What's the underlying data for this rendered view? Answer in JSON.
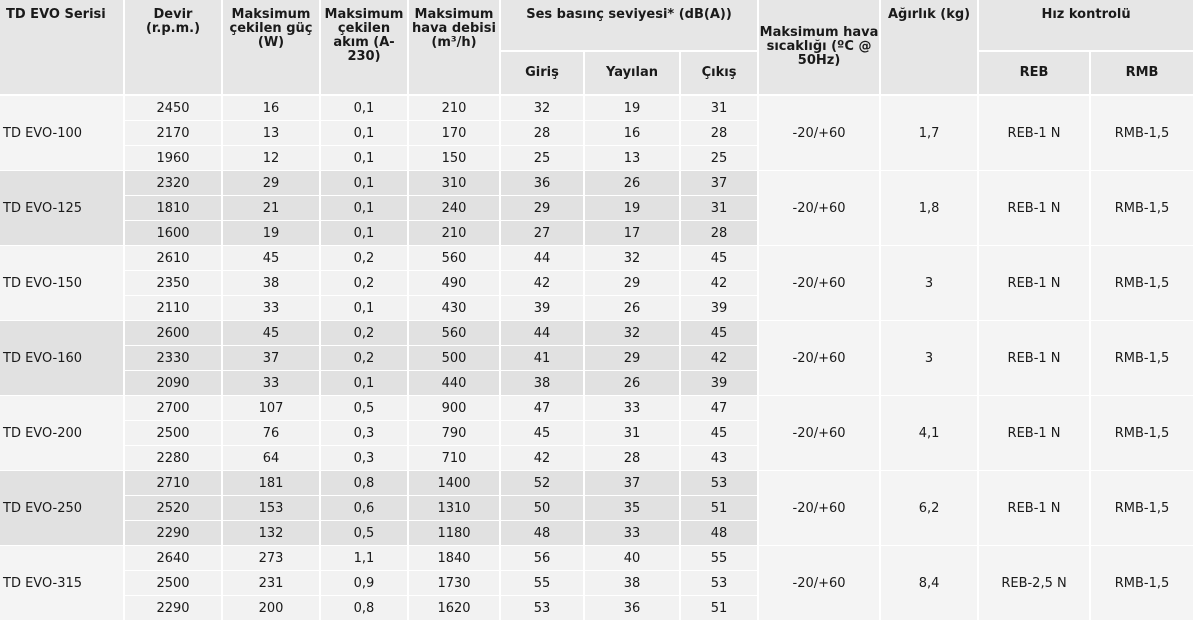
{
  "headers": {
    "series": "TD EVO Serisi",
    "rpm": "Devir (r.p.m.)",
    "power": "Maksimum çekilen güç (W)",
    "current": "Maksimum çekilen akım (A-230)",
    "airflow": "Maksimum hava debisi (m³/h)",
    "sound_group": "Ses basınç seviyesi* (dB(A))",
    "sound_in": "Giriş",
    "sound_radiated": "Yayılan",
    "sound_out": "Çıkış",
    "max_temp": "Maksimum hava sıcaklığı (ºC @ 50Hz)",
    "weight": "Ağırlık (kg)",
    "speed_group": "Hız kontrolü",
    "reb": "REB",
    "rmb": "RMB"
  },
  "groups": [
    {
      "name": "TD EVO-100",
      "temp": "-20/+60",
      "weight": "1,7",
      "reb": "REB-1 N",
      "rmb": "RMB-1,5",
      "rows": [
        [
          "2450",
          "16",
          "0,1",
          "210",
          "32",
          "19",
          "31"
        ],
        [
          "2170",
          "13",
          "0,1",
          "170",
          "28",
          "16",
          "28"
        ],
        [
          "1960",
          "12",
          "0,1",
          "150",
          "25",
          "13",
          "25"
        ]
      ]
    },
    {
      "name": "TD EVO-125",
      "temp": "-20/+60",
      "weight": "1,8",
      "reb": "REB-1 N",
      "rmb": "RMB-1,5",
      "rows": [
        [
          "2320",
          "29",
          "0,1",
          "310",
          "36",
          "26",
          "37"
        ],
        [
          "1810",
          "21",
          "0,1",
          "240",
          "29",
          "19",
          "31"
        ],
        [
          "1600",
          "19",
          "0,1",
          "210",
          "27",
          "17",
          "28"
        ]
      ]
    },
    {
      "name": "TD EVO-150",
      "temp": "-20/+60",
      "weight": "3",
      "reb": "REB-1 N",
      "rmb": "RMB-1,5",
      "rows": [
        [
          "2610",
          "45",
          "0,2",
          "560",
          "44",
          "32",
          "45"
        ],
        [
          "2350",
          "38",
          "0,2",
          "490",
          "42",
          "29",
          "42"
        ],
        [
          "2110",
          "33",
          "0,1",
          "430",
          "39",
          "26",
          "39"
        ]
      ]
    },
    {
      "name": "TD EVO-160",
      "temp": "-20/+60",
      "weight": "3",
      "reb": "REB-1 N",
      "rmb": "RMB-1,5",
      "rows": [
        [
          "2600",
          "45",
          "0,2",
          "560",
          "44",
          "32",
          "45"
        ],
        [
          "2330",
          "37",
          "0,2",
          "500",
          "41",
          "29",
          "42"
        ],
        [
          "2090",
          "33",
          "0,1",
          "440",
          "38",
          "26",
          "39"
        ]
      ]
    },
    {
      "name": "TD EVO-200",
      "temp": "-20/+60",
      "weight": "4,1",
      "reb": "REB-1 N",
      "rmb": "RMB-1,5",
      "rows": [
        [
          "2700",
          "107",
          "0,5",
          "900",
          "47",
          "33",
          "47"
        ],
        [
          "2500",
          "76",
          "0,3",
          "790",
          "45",
          "31",
          "45"
        ],
        [
          "2280",
          "64",
          "0,3",
          "710",
          "42",
          "28",
          "43"
        ]
      ]
    },
    {
      "name": "TD EVO-250",
      "temp": "-20/+60",
      "weight": "6,2",
      "reb": "REB-1 N",
      "rmb": "RMB-1,5",
      "rows": [
        [
          "2710",
          "181",
          "0,8",
          "1400",
          "52",
          "37",
          "53"
        ],
        [
          "2520",
          "153",
          "0,6",
          "1310",
          "50",
          "35",
          "51"
        ],
        [
          "2290",
          "132",
          "0,5",
          "1180",
          "48",
          "33",
          "48"
        ]
      ]
    },
    {
      "name": "TD EVO-315",
      "temp": "-20/+60",
      "weight": "8,4",
      "reb": "REB-2,5 N",
      "rmb": "RMB-1,5",
      "rows": [
        [
          "2640",
          "273",
          "1,1",
          "1840",
          "56",
          "40",
          "55"
        ],
        [
          "2500",
          "231",
          "0,9",
          "1730",
          "55",
          "38",
          "53"
        ],
        [
          "2290",
          "200",
          "0,8",
          "1620",
          "53",
          "36",
          "51"
        ]
      ]
    }
  ]
}
